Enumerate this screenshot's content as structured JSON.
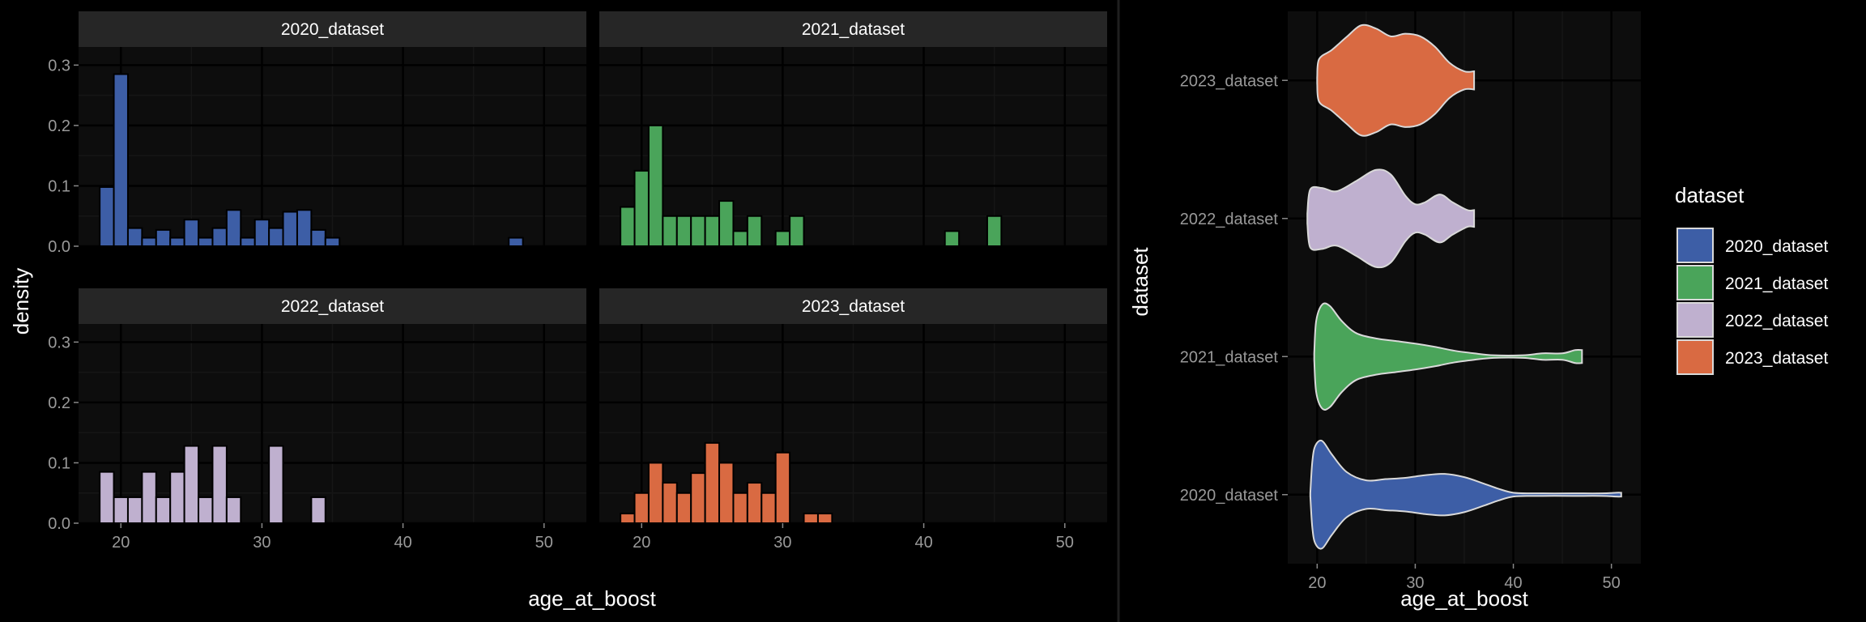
{
  "chart_data": [
    {
      "type": "bar",
      "subtype": "histogram-facets",
      "xlabel": "age_at_boost",
      "ylabel": "density",
      "xlim": [
        17,
        53
      ],
      "ylim": [
        0,
        0.33
      ],
      "x_ticks": [
        20,
        30,
        40,
        50
      ],
      "y_ticks": [
        0.0,
        0.1,
        0.2,
        0.3
      ],
      "y_tick_labels": [
        "0.0",
        "0.1",
        "0.2",
        "0.3"
      ],
      "bin_width": 1,
      "grid": true,
      "facets": [
        {
          "title": "2020_dataset",
          "color": "#3D5EA6",
          "bins": [
            {
              "x": 19,
              "y": 0.098
            },
            {
              "x": 20,
              "y": 0.285
            },
            {
              "x": 21,
              "y": 0.03
            },
            {
              "x": 22,
              "y": 0.014
            },
            {
              "x": 23,
              "y": 0.027
            },
            {
              "x": 24,
              "y": 0.014
            },
            {
              "x": 25,
              "y": 0.044
            },
            {
              "x": 26,
              "y": 0.014
            },
            {
              "x": 27,
              "y": 0.03
            },
            {
              "x": 28,
              "y": 0.06
            },
            {
              "x": 29,
              "y": 0.014
            },
            {
              "x": 30,
              "y": 0.044
            },
            {
              "x": 31,
              "y": 0.03
            },
            {
              "x": 32,
              "y": 0.057
            },
            {
              "x": 33,
              "y": 0.06
            },
            {
              "x": 34,
              "y": 0.027
            },
            {
              "x": 35,
              "y": 0.014
            },
            {
              "x": 48,
              "y": 0.014
            }
          ]
        },
        {
          "title": "2021_dataset",
          "color": "#4AA45A",
          "bins": [
            {
              "x": 19,
              "y": 0.065
            },
            {
              "x": 20,
              "y": 0.125
            },
            {
              "x": 21,
              "y": 0.2
            },
            {
              "x": 22,
              "y": 0.05
            },
            {
              "x": 23,
              "y": 0.05
            },
            {
              "x": 24,
              "y": 0.05
            },
            {
              "x": 25,
              "y": 0.05
            },
            {
              "x": 26,
              "y": 0.075
            },
            {
              "x": 27,
              "y": 0.025
            },
            {
              "x": 28,
              "y": 0.05
            },
            {
              "x": 30,
              "y": 0.025
            },
            {
              "x": 31,
              "y": 0.05
            },
            {
              "x": 42,
              "y": 0.025
            },
            {
              "x": 45,
              "y": 0.05
            }
          ]
        },
        {
          "title": "2022_dataset",
          "color": "#BFB0CF",
          "bins": [
            {
              "x": 19,
              "y": 0.085
            },
            {
              "x": 20,
              "y": 0.043
            },
            {
              "x": 21,
              "y": 0.043
            },
            {
              "x": 22,
              "y": 0.085
            },
            {
              "x": 23,
              "y": 0.043
            },
            {
              "x": 24,
              "y": 0.085
            },
            {
              "x": 25,
              "y": 0.128
            },
            {
              "x": 26,
              "y": 0.043
            },
            {
              "x": 27,
              "y": 0.128
            },
            {
              "x": 28,
              "y": 0.043
            },
            {
              "x": 31,
              "y": 0.128
            },
            {
              "x": 34,
              "y": 0.043
            }
          ]
        },
        {
          "title": "2023_dataset",
          "color": "#D96A42",
          "bins": [
            {
              "x": 19,
              "y": 0.016
            },
            {
              "x": 20,
              "y": 0.05
            },
            {
              "x": 21,
              "y": 0.1
            },
            {
              "x": 22,
              "y": 0.067
            },
            {
              "x": 23,
              "y": 0.05
            },
            {
              "x": 24,
              "y": 0.083
            },
            {
              "x": 25,
              "y": 0.133
            },
            {
              "x": 26,
              "y": 0.1
            },
            {
              "x": 27,
              "y": 0.05
            },
            {
              "x": 28,
              "y": 0.067
            },
            {
              "x": 29,
              "y": 0.05
            },
            {
              "x": 30,
              "y": 0.117
            },
            {
              "x": 32,
              "y": 0.016
            },
            {
              "x": 33,
              "y": 0.016
            }
          ]
        }
      ]
    },
    {
      "type": "violin",
      "xlabel": "age_at_boost",
      "ylabel": "dataset",
      "xlim": [
        17,
        53
      ],
      "x_ticks": [
        20,
        30,
        40,
        50
      ],
      "grid": true,
      "legend": {
        "title": "dataset",
        "placement": "right",
        "entries": [
          "2020_dataset",
          "2021_dataset",
          "2022_dataset",
          "2023_dataset"
        ]
      },
      "series": [
        {
          "name": "2020_dataset",
          "color": "#3D5EA6",
          "range": [
            19.3,
            51
          ],
          "profile": [
            [
              19.3,
              0.02
            ],
            [
              19.5,
              0.5
            ],
            [
              19.8,
              0.75
            ],
            [
              20.5,
              0.83
            ],
            [
              21.5,
              0.62
            ],
            [
              23,
              0.35
            ],
            [
              25,
              0.22
            ],
            [
              27,
              0.24
            ],
            [
              29,
              0.26
            ],
            [
              31,
              0.3
            ],
            [
              33,
              0.32
            ],
            [
              35,
              0.27
            ],
            [
              37,
              0.17
            ],
            [
              38.5,
              0.09
            ],
            [
              40,
              0.03
            ],
            [
              42,
              0.02
            ],
            [
              46,
              0.02
            ],
            [
              49,
              0.02
            ],
            [
              50.5,
              0.03
            ],
            [
              51,
              0.03
            ]
          ]
        },
        {
          "name": "2021_dataset",
          "color": "#4AA45A",
          "range": [
            19.7,
            47
          ],
          "profile": [
            [
              19.7,
              0.05
            ],
            [
              19.9,
              0.55
            ],
            [
              20.5,
              0.8
            ],
            [
              21.3,
              0.78
            ],
            [
              22.5,
              0.55
            ],
            [
              24,
              0.36
            ],
            [
              26,
              0.28
            ],
            [
              28,
              0.24
            ],
            [
              30,
              0.2
            ],
            [
              32,
              0.15
            ],
            [
              34,
              0.09
            ],
            [
              36,
              0.05
            ],
            [
              38,
              0.02
            ],
            [
              41,
              0.02
            ],
            [
              43,
              0.05
            ],
            [
              45,
              0.05
            ],
            [
              46.3,
              0.1
            ],
            [
              47,
              0.1
            ]
          ]
        },
        {
          "name": "2022_dataset",
          "color": "#BFB0CF",
          "range": [
            19,
            36
          ],
          "profile": [
            [
              19,
              0.08
            ],
            [
              19.3,
              0.45
            ],
            [
              20.5,
              0.47
            ],
            [
              22,
              0.42
            ],
            [
              24,
              0.58
            ],
            [
              26,
              0.75
            ],
            [
              27.5,
              0.68
            ],
            [
              29,
              0.35
            ],
            [
              30,
              0.22
            ],
            [
              31,
              0.25
            ],
            [
              32.5,
              0.37
            ],
            [
              33.8,
              0.25
            ],
            [
              35.3,
              0.13
            ],
            [
              36,
              0.13
            ]
          ]
        },
        {
          "name": "2023_dataset",
          "color": "#D96A42",
          "range": [
            20,
            36
          ],
          "profile": [
            [
              20,
              0.05
            ],
            [
              20.2,
              0.33
            ],
            [
              21.5,
              0.47
            ],
            [
              23,
              0.67
            ],
            [
              24.5,
              0.85
            ],
            [
              26,
              0.8
            ],
            [
              27.5,
              0.68
            ],
            [
              29,
              0.72
            ],
            [
              30.5,
              0.68
            ],
            [
              32,
              0.52
            ],
            [
              33.5,
              0.27
            ],
            [
              35,
              0.14
            ],
            [
              36,
              0.14
            ]
          ]
        }
      ]
    }
  ]
}
